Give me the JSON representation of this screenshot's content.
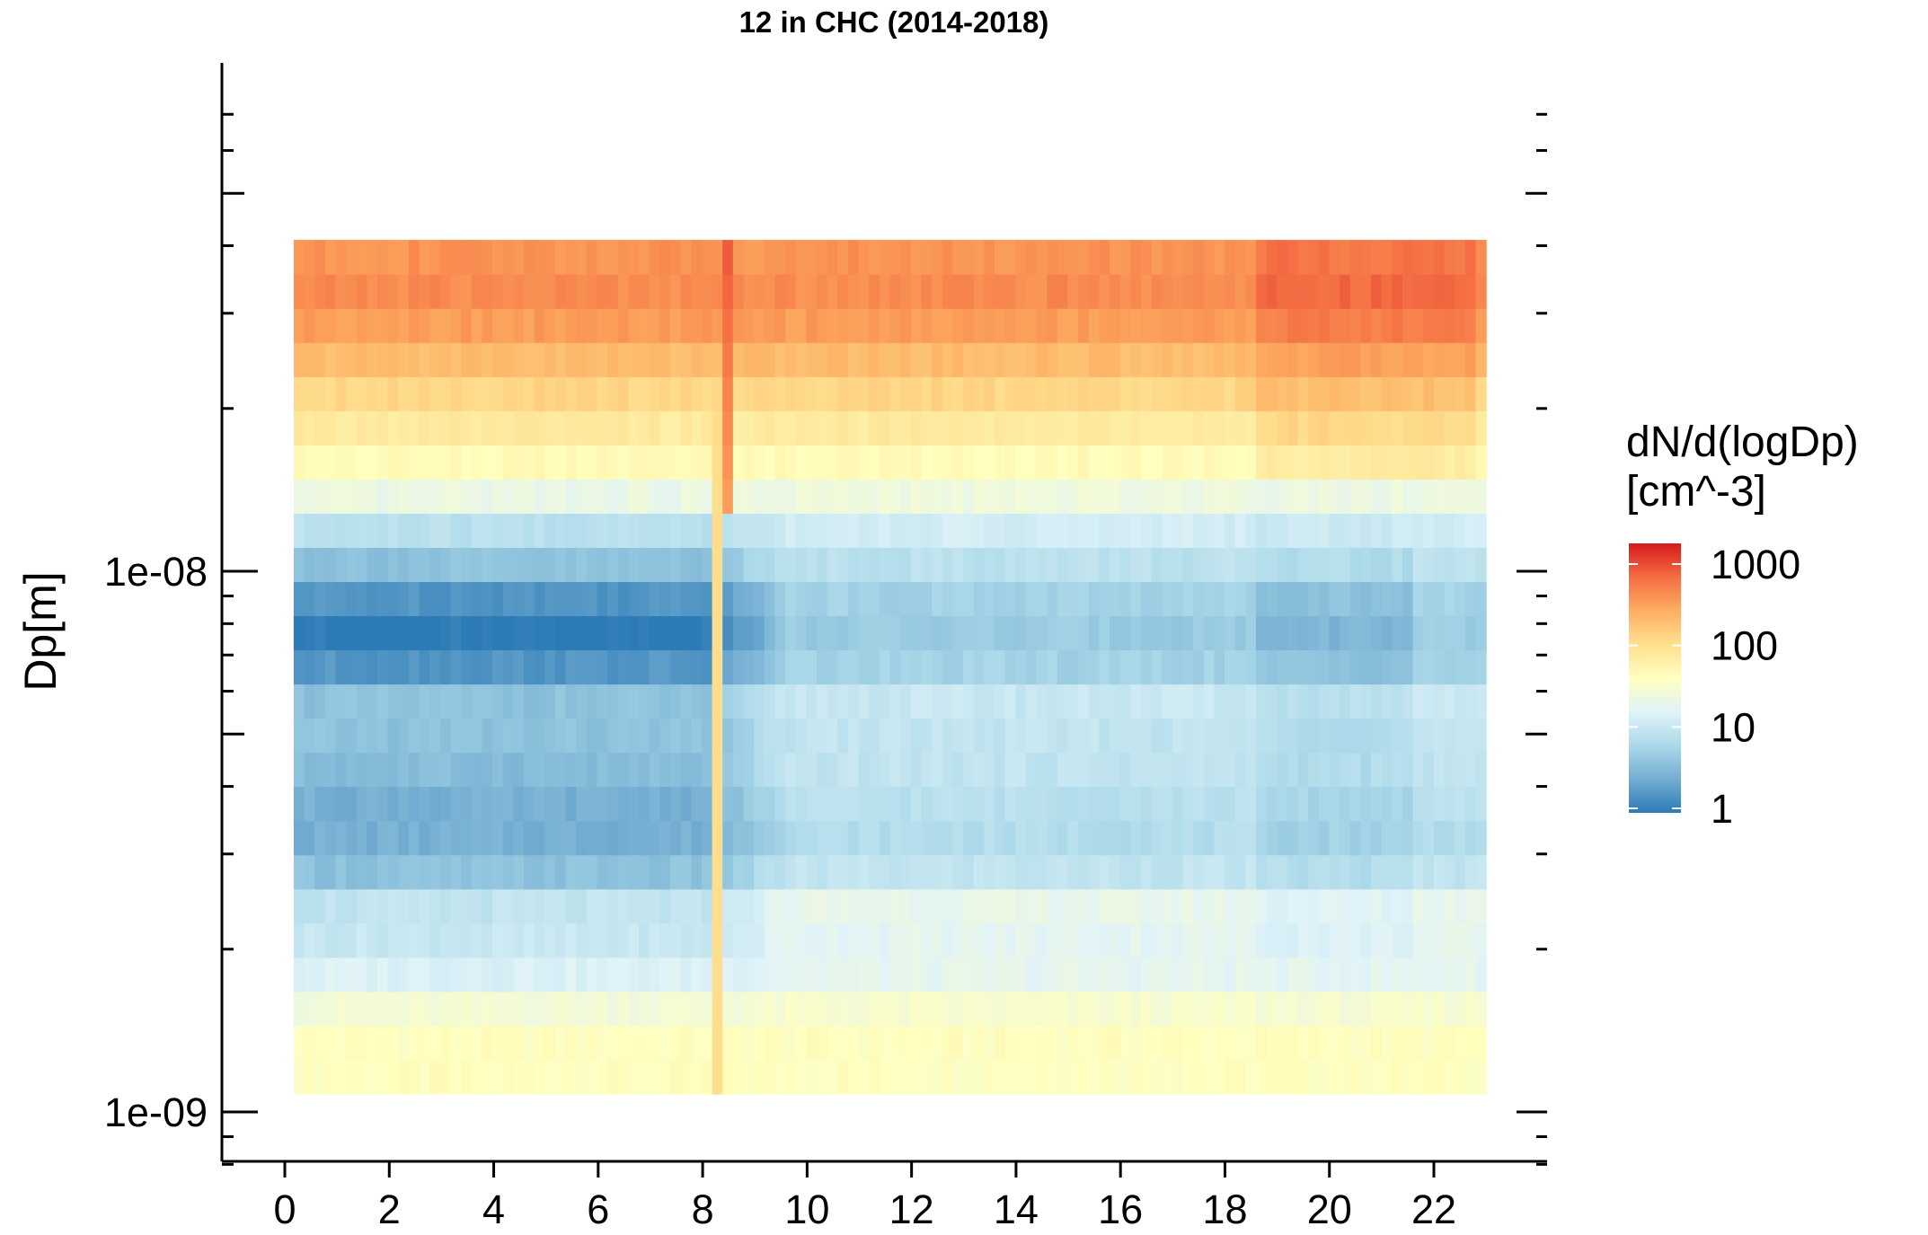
{
  "chart_data": {
    "type": "heatmap",
    "title": "12 in CHC (2014-2018)",
    "xlabel": "",
    "ylabel": "Dp[m]",
    "x_ticks": [
      "0",
      "2",
      "4",
      "6",
      "8",
      "10",
      "12",
      "14",
      "16",
      "18",
      "20",
      "22"
    ],
    "y_ticks": [
      "1e-08",
      "1e-09"
    ],
    "y_scale": "log",
    "xlim": [
      -0.5,
      24.5
    ],
    "ylim": [
      8e-10,
      7e-08
    ],
    "x_range_data": [
      0.17,
      23.0
    ],
    "y_range_data": [
      1.08e-09,
      4.1e-08
    ],
    "x_cells": 114,
    "y_cells": 25,
    "legend": {
      "title_line1": "dN/d(logDp)",
      "title_line2": "[cm^-3]",
      "scale": "log",
      "ticks": [
        "1000",
        "100",
        "10",
        "1"
      ],
      "colors": [
        "#d7191c",
        "#f46d43",
        "#fdae61",
        "#fee090",
        "#ffffbf",
        "#e0f3f8",
        "#abd9e9",
        "#74add1",
        "#2c7bb6"
      ],
      "placement": "right"
    },
    "z_profile_log10": [
      1.5,
      1.5,
      1.4,
      1.2,
      1.2,
      1.25,
      0.95,
      0.85,
      0.9,
      0.95,
      0.95,
      1.0,
      0.75,
      0.7,
      0.75,
      0.9,
      1.05,
      1.3,
      1.55,
      1.75,
      1.95,
      2.15,
      2.35,
      2.45,
      2.4
    ],
    "night_dip_log10": [
      0.0,
      0.0,
      0.05,
      0.1,
      0.25,
      0.35,
      0.4,
      0.45,
      0.5,
      0.45,
      0.4,
      0.45,
      0.55,
      0.7,
      0.55,
      0.35,
      0.2,
      0.05,
      0.0,
      0.0,
      0.0,
      0.0,
      0.0,
      0.0,
      0.0
    ],
    "event_hour": 8.45,
    "event_log10": 2.7
  }
}
